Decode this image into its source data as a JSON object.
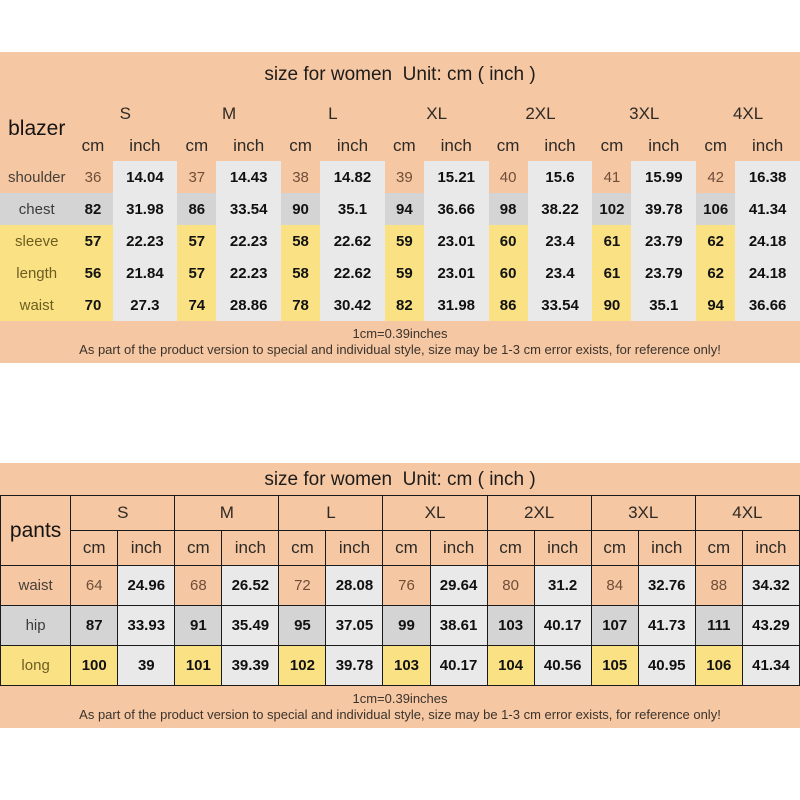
{
  "colors": {
    "peach": "#f6c7a3",
    "row-gray": "#d4d4d4",
    "row-yellow": "#fae284",
    "inch-gray": "#e9e9e9",
    "border": "#1a1a1a"
  },
  "chart_data": [
    {
      "type": "table",
      "garment": "blazer",
      "title": "size for women  Unit: cm ( inch )",
      "sizes": [
        "S",
        "M",
        "L",
        "XL",
        "2XL",
        "3XL",
        "4XL"
      ],
      "units": [
        "cm",
        "inch"
      ],
      "rows": [
        {
          "label": "shoulder",
          "tone": "peach",
          "cm": [
            36,
            37,
            38,
            39,
            40,
            41,
            42
          ],
          "inch": [
            14.04,
            14.43,
            14.82,
            15.21,
            15.6,
            15.99,
            16.38
          ]
        },
        {
          "label": "chest",
          "tone": "gray",
          "cm": [
            82,
            86,
            90,
            94,
            98,
            102,
            106
          ],
          "inch": [
            31.98,
            33.54,
            35.1,
            36.66,
            38.22,
            39.78,
            41.34
          ]
        },
        {
          "label": "sleeve",
          "tone": "yellow",
          "cm": [
            57,
            57,
            58,
            59,
            60,
            61,
            62
          ],
          "inch": [
            22.23,
            22.23,
            22.62,
            23.01,
            23.4,
            23.79,
            24.18
          ]
        },
        {
          "label": "length",
          "tone": "yellow",
          "cm": [
            56,
            57,
            58,
            59,
            60,
            61,
            62
          ],
          "inch": [
            21.84,
            22.23,
            22.62,
            23.01,
            23.4,
            23.79,
            24.18
          ]
        },
        {
          "label": "waist",
          "tone": "yellow",
          "cm": [
            70,
            74,
            78,
            82,
            86,
            90,
            94
          ],
          "inch": [
            27.3,
            28.86,
            30.42,
            31.98,
            33.54,
            35.1,
            36.66
          ]
        }
      ],
      "footer_line1": "1cm=0.39inches",
      "footer_line2": "As part of the product version to special and individual style, size may be 1-3 cm error exists, for reference only!"
    },
    {
      "type": "table",
      "garment": "pants",
      "title": "size for women  Unit: cm ( inch )",
      "sizes": [
        "S",
        "M",
        "L",
        "XL",
        "2XL",
        "3XL",
        "4XL"
      ],
      "units": [
        "cm",
        "inch"
      ],
      "rows": [
        {
          "label": "waist",
          "tone": "peach",
          "cm": [
            64,
            68,
            72,
            76,
            80,
            84,
            88
          ],
          "inch": [
            24.96,
            26.52,
            28.08,
            29.64,
            31.2,
            32.76,
            34.32
          ]
        },
        {
          "label": "hip",
          "tone": "gray",
          "cm": [
            87,
            91,
            95,
            99,
            103,
            107,
            111
          ],
          "inch": [
            33.93,
            35.49,
            37.05,
            38.61,
            40.17,
            41.73,
            43.29
          ]
        },
        {
          "label": "long",
          "tone": "yellow",
          "cm": [
            100,
            101,
            102,
            103,
            104,
            105,
            106
          ],
          "inch": [
            39,
            39.39,
            39.78,
            40.17,
            40.56,
            40.95,
            41.34
          ]
        }
      ],
      "footer_line1": "1cm=0.39inches",
      "footer_line2": "As part of the product version to special and individual style, size may be 1-3 cm error exists, for reference only!"
    }
  ]
}
